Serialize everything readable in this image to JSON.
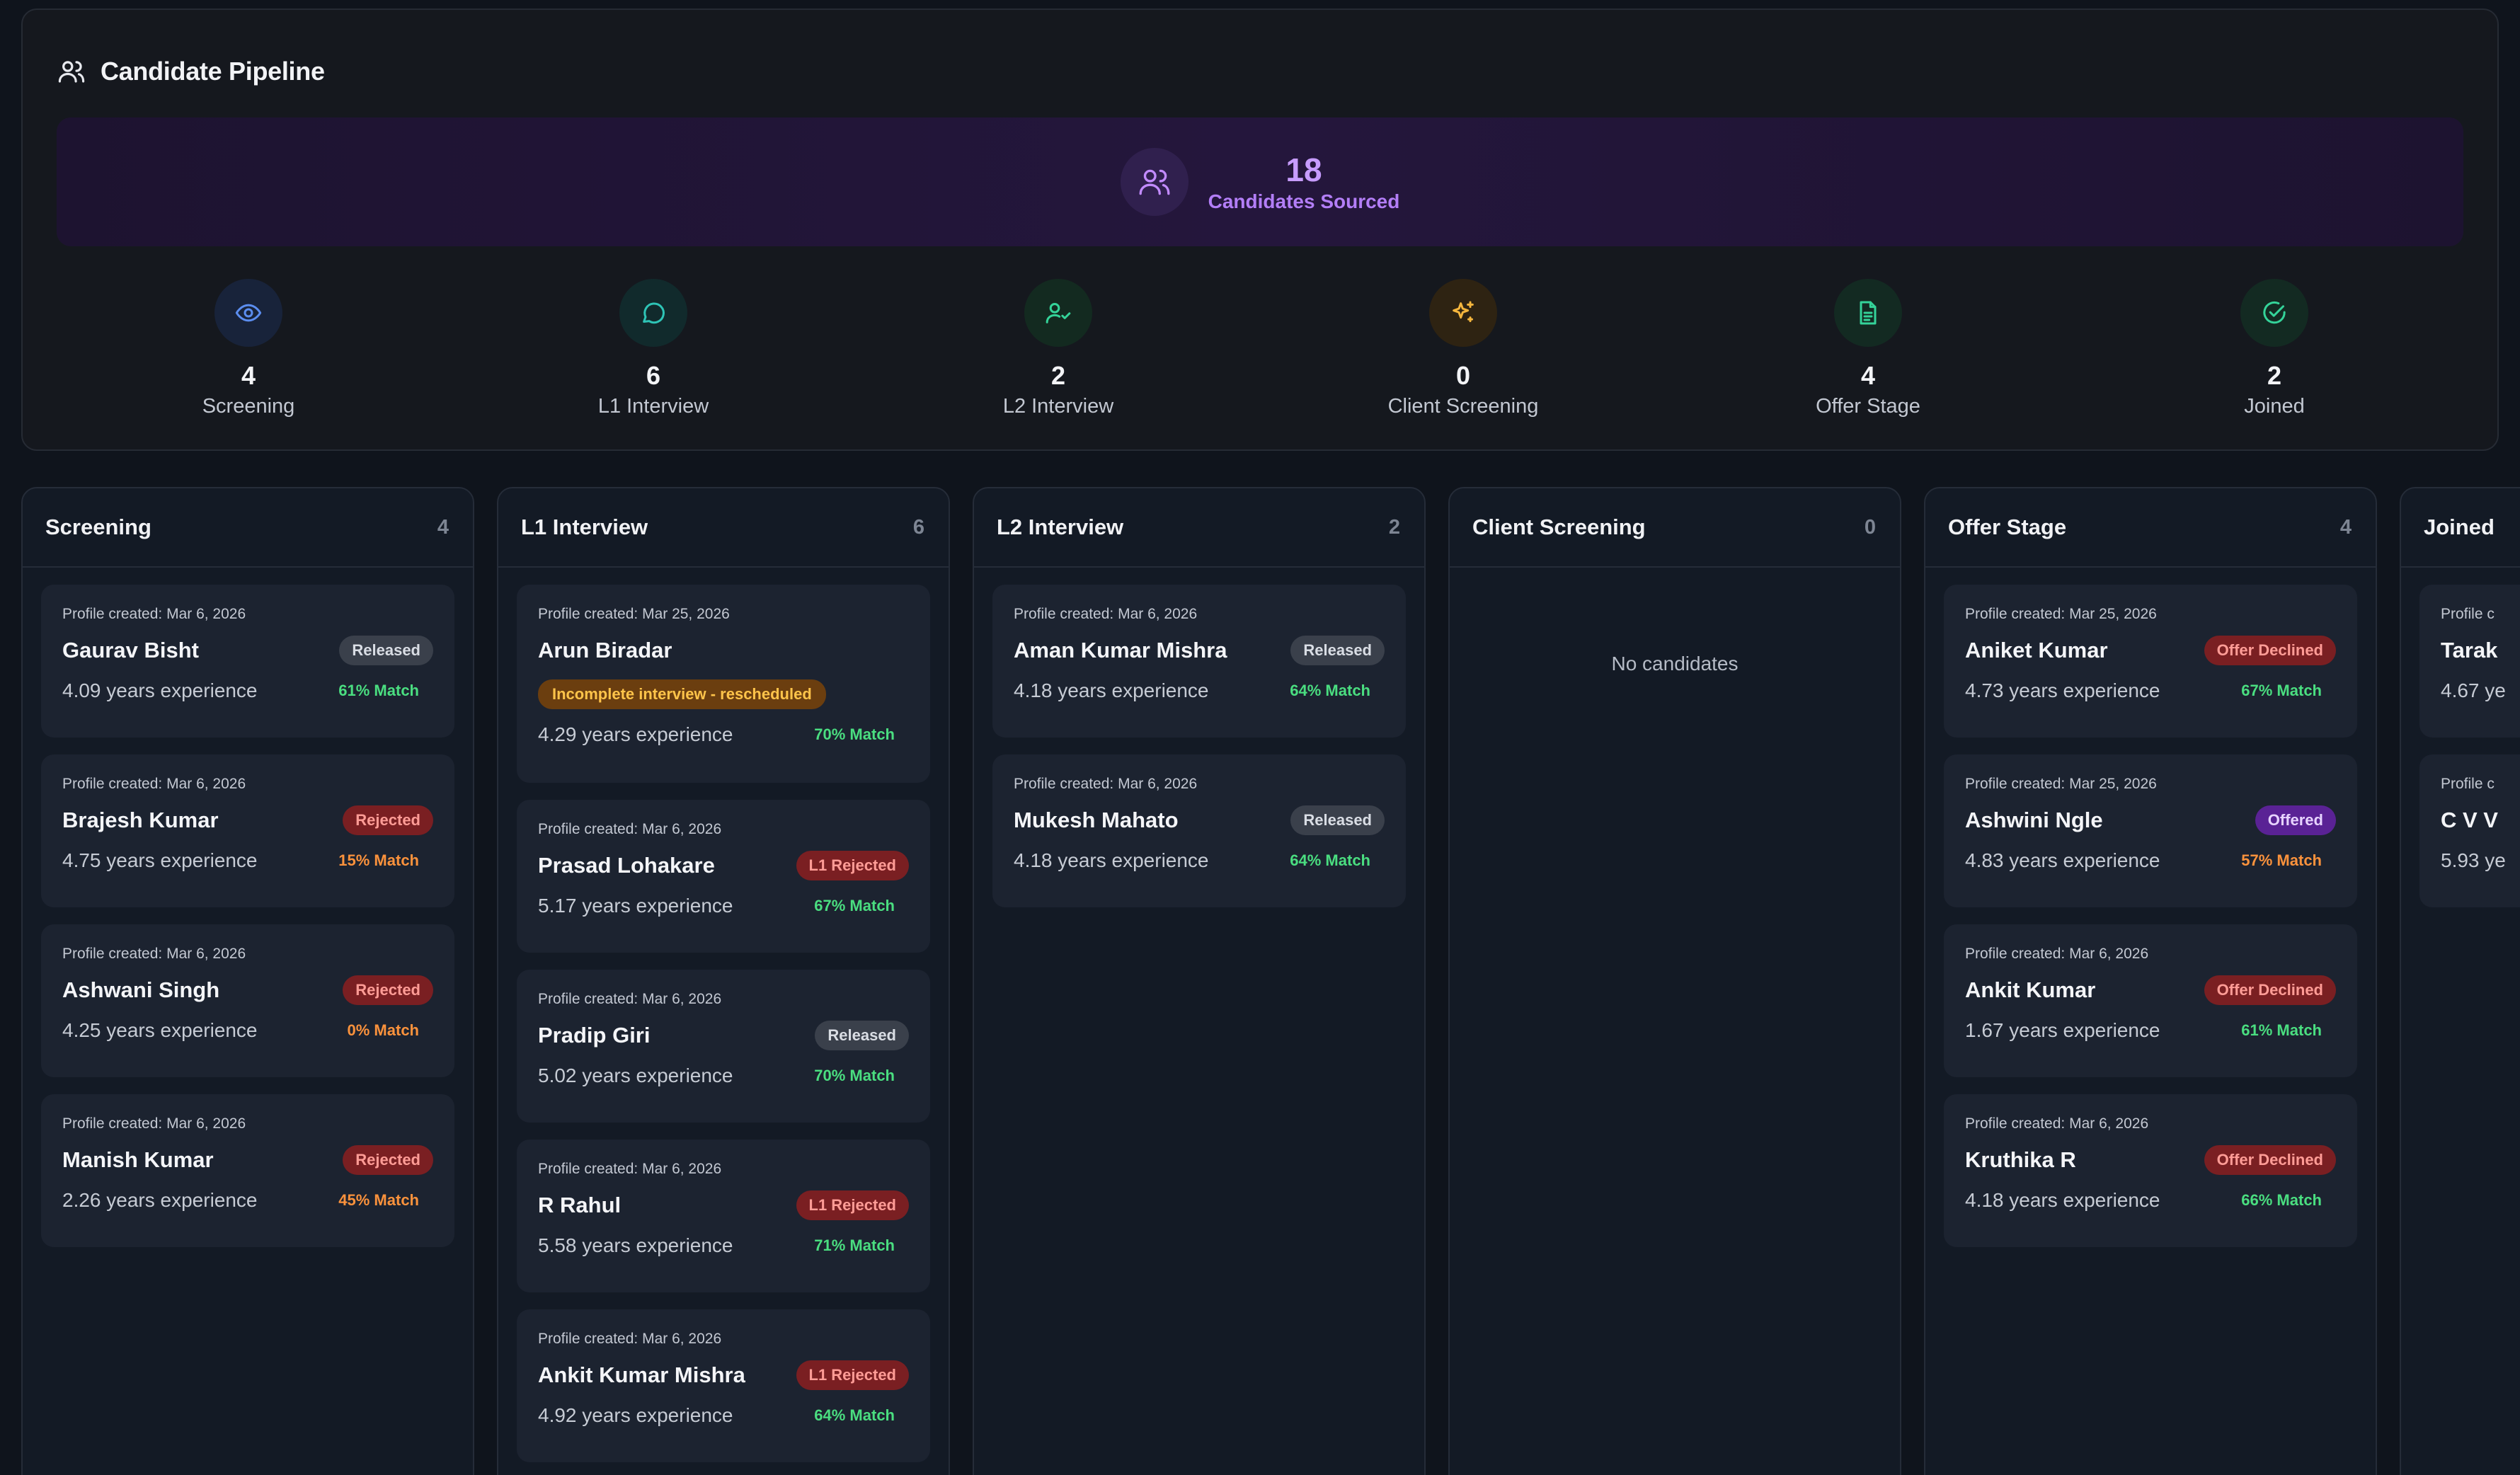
{
  "summary": {
    "title": "Candidate Pipeline",
    "sourced_count": "18",
    "sourced_label": "Candidates Sourced",
    "stages": [
      {
        "count": "4",
        "label": "Screening",
        "icon": "eye-icon",
        "color": "#5b8def",
        "bg": "#18233a"
      },
      {
        "count": "6",
        "label": "L1 Interview",
        "icon": "chat-icon",
        "color": "#2ec4b6",
        "bg": "#112a2c"
      },
      {
        "count": "2",
        "label": "L2 Interview",
        "icon": "user-check-icon",
        "color": "#34d399",
        "bg": "#132a20"
      },
      {
        "count": "0",
        "label": "Client Screening",
        "icon": "sparkles-icon",
        "color": "#f5b63d",
        "bg": "#2e2312"
      },
      {
        "count": "4",
        "label": "Offer Stage",
        "icon": "document-icon",
        "color": "#34d399",
        "bg": "#132a22"
      },
      {
        "count": "2",
        "label": "Joined",
        "icon": "check-circle-icon",
        "color": "#34d399",
        "bg": "#132a22"
      }
    ]
  },
  "columns": [
    {
      "title": "Screening",
      "count": "4",
      "cards": [
        {
          "created": "Profile created: Mar 6, 2026",
          "name": "Gaurav Bisht",
          "badge": "Released",
          "badge_type": "released",
          "experience": "4.09 years experience",
          "match": "61% Match",
          "match_color": "green"
        },
        {
          "created": "Profile created: Mar 6, 2026",
          "name": "Brajesh Kumar",
          "badge": "Rejected",
          "badge_type": "rejected",
          "experience": "4.75 years experience",
          "match": "15% Match",
          "match_color": "orange"
        },
        {
          "created": "Profile created: Mar 6, 2026",
          "name": "Ashwani Singh",
          "badge": "Rejected",
          "badge_type": "rejected",
          "experience": "4.25 years experience",
          "match": "0% Match",
          "match_color": "orange"
        },
        {
          "created": "Profile created: Mar 6, 2026",
          "name": "Manish Kumar",
          "badge": "Rejected",
          "badge_type": "rejected",
          "experience": "2.26 years experience",
          "match": "45% Match",
          "match_color": "orange"
        }
      ]
    },
    {
      "title": "L1 Interview",
      "count": "6",
      "cards": [
        {
          "created": "Profile created: Mar 25, 2026",
          "name": "Arun Biradar",
          "badge": "",
          "badge_type": "",
          "warning": "Incomplete interview - rescheduled",
          "experience": "4.29 years experience",
          "match": "70% Match",
          "match_color": "green"
        },
        {
          "created": "Profile created: Mar 6, 2026",
          "name": "Prasad Lohakare",
          "badge": "L1 Rejected",
          "badge_type": "rejected",
          "experience": "5.17 years experience",
          "match": "67% Match",
          "match_color": "green"
        },
        {
          "created": "Profile created: Mar 6, 2026",
          "name": "Pradip Giri",
          "badge": "Released",
          "badge_type": "released",
          "experience": "5.02 years experience",
          "match": "70% Match",
          "match_color": "green"
        },
        {
          "created": "Profile created: Mar 6, 2026",
          "name": "R Rahul",
          "badge": "L1 Rejected",
          "badge_type": "rejected",
          "experience": "5.58 years experience",
          "match": "71% Match",
          "match_color": "green"
        },
        {
          "created": "Profile created: Mar 6, 2026",
          "name": "Ankit Kumar Mishra",
          "badge": "L1 Rejected",
          "badge_type": "rejected",
          "experience": "4.92 years experience",
          "match": "64% Match",
          "match_color": "green"
        }
      ]
    },
    {
      "title": "L2 Interview",
      "count": "2",
      "cards": [
        {
          "created": "Profile created: Mar 6, 2026",
          "name": "Aman Kumar Mishra",
          "badge": "Released",
          "badge_type": "released",
          "experience": "4.18 years experience",
          "match": "64% Match",
          "match_color": "green"
        },
        {
          "created": "Profile created: Mar 6, 2026",
          "name": "Mukesh Mahato",
          "badge": "Released",
          "badge_type": "released",
          "experience": "4.18 years experience",
          "match": "64% Match",
          "match_color": "green"
        }
      ]
    },
    {
      "title": "Client Screening",
      "count": "0",
      "empty_text": "No candidates",
      "cards": []
    },
    {
      "title": "Offer Stage",
      "count": "4",
      "cards": [
        {
          "created": "Profile created: Mar 25, 2026",
          "name": "Aniket Kumar",
          "badge": "Offer Declined",
          "badge_type": "rejected",
          "experience": "4.73 years experience",
          "match": "67% Match",
          "match_color": "green"
        },
        {
          "created": "Profile created: Mar 25, 2026",
          "name": "Ashwini Ngle",
          "badge": "Offered",
          "badge_type": "offered",
          "experience": "4.83 years experience",
          "match": "57% Match",
          "match_color": "orange"
        },
        {
          "created": "Profile created: Mar 6, 2026",
          "name": "Ankit Kumar",
          "badge": "Offer Declined",
          "badge_type": "rejected",
          "experience": "1.67 years experience",
          "match": "61% Match",
          "match_color": "green"
        },
        {
          "created": "Profile created: Mar 6, 2026",
          "name": "Kruthika R",
          "badge": "Offer Declined",
          "badge_type": "rejected",
          "experience": "4.18 years experience",
          "match": "66% Match",
          "match_color": "green"
        }
      ]
    },
    {
      "title": "Joined",
      "count": "",
      "cards": [
        {
          "created": "Profile c",
          "name": "Tarak",
          "badge": "",
          "badge_type": "",
          "experience": "4.67 ye",
          "match": "",
          "match_color": "green"
        },
        {
          "created": "Profile c",
          "name": "C V V",
          "badge": "",
          "badge_type": "",
          "experience": "5.93 ye",
          "match": "",
          "match_color": "green"
        }
      ]
    }
  ]
}
